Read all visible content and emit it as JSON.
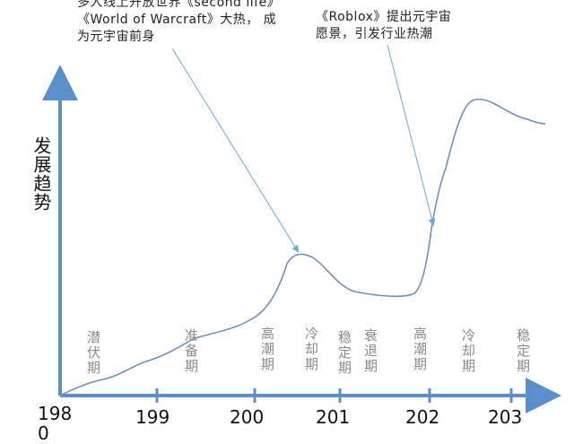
{
  "annotations": {
    "secondlife": {
      "line1": "多人线上开放世界《second life》",
      "line2": "《World of Warcraft》大热， 成",
      "line3": "为元宇宙前身"
    },
    "roblox": {
      "line1": "《Roblox》提出元宇宙",
      "line2": "愿景，引发行业热潮"
    }
  },
  "axis": {
    "y_label": "发展趋势",
    "x_ticks": [
      "198\n0",
      "199",
      "200",
      "201",
      "202",
      "203"
    ]
  },
  "phases": [
    {
      "label": "潜伏期"
    },
    {
      "label": "准备期"
    },
    {
      "label": "高潮期"
    },
    {
      "label": "冷却期"
    },
    {
      "label": "稳定期"
    },
    {
      "label": "衰退期"
    },
    {
      "label": "高潮期"
    },
    {
      "label": "冷却期"
    },
    {
      "label": "稳定期"
    }
  ],
  "colors": {
    "axis": "#5b8fc9",
    "curve": "#6f8fb6",
    "arrow": "#6aa7d6",
    "phase_text": "#8a8a8a"
  }
}
